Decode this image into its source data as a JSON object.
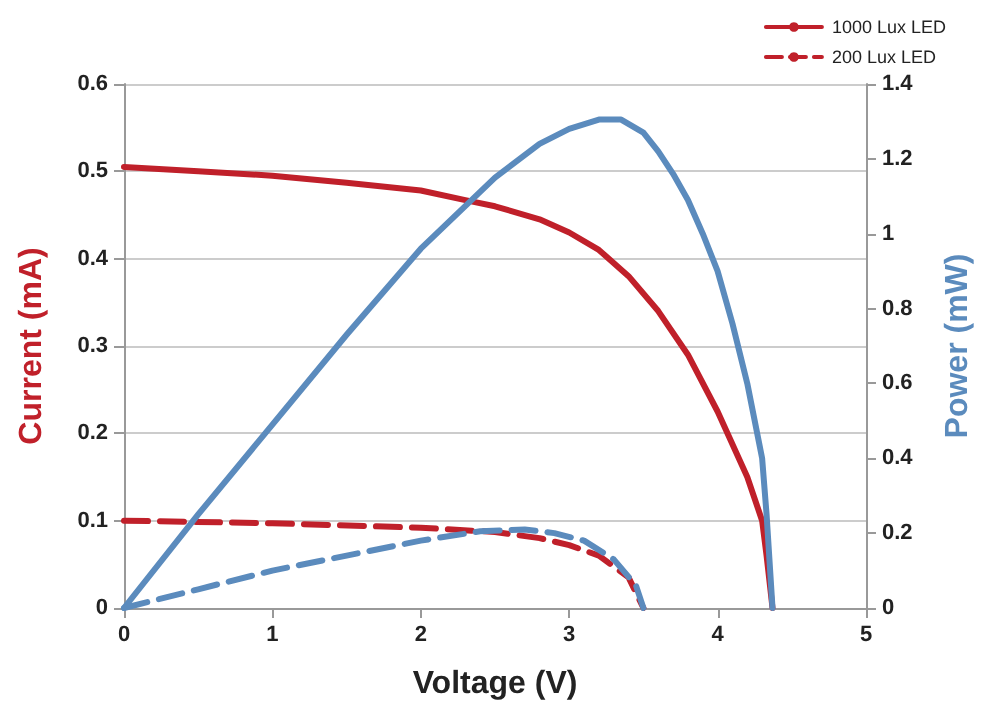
{
  "chart_data": {
    "type": "line",
    "xlabel": "Voltage (V)",
    "ylabel": "Current (mA)",
    "y2label": "Power (mW)",
    "xlim": [
      0,
      5
    ],
    "xticks": [
      0,
      1,
      2,
      3,
      4,
      5
    ],
    "ylim": [
      0,
      0.6
    ],
    "yticks": [
      0,
      0.1,
      0.2,
      0.3,
      0.4,
      0.5,
      0.6
    ],
    "y2lim": [
      0,
      1.4
    ],
    "y2ticks": [
      0,
      0.2,
      0.4,
      0.6,
      0.8,
      1,
      1.2,
      1.4
    ],
    "grid": "y",
    "legend": "top right",
    "marker": "none",
    "series": [
      {
        "name": "1000 Lux LED",
        "color": "#c0202a",
        "line_style": "solid",
        "x": [
          0,
          0.5,
          1,
          1.5,
          2,
          2.3,
          2.5,
          2.8,
          3,
          3.2,
          3.4,
          3.6,
          3.8,
          4,
          4.2,
          4.3,
          4.33,
          4.37
        ],
        "values": [
          0.505,
          0.5,
          0.495,
          0.487,
          0.478,
          0.467,
          0.46,
          0.445,
          0.43,
          0.41,
          0.38,
          0.34,
          0.29,
          0.225,
          0.15,
          0.1,
          0.06,
          0
        ]
      },
      {
        "name": "200 Lux LED",
        "color": "#c0202a",
        "line_style": "dashed",
        "x": [
          0,
          1,
          2,
          2.5,
          2.8,
          3,
          3.2,
          3.4,
          3.5
        ],
        "values": [
          0.1,
          0.097,
          0.092,
          0.087,
          0.08,
          0.072,
          0.06,
          0.035,
          0
        ]
      },
      {
        "color": "#5b8bbd",
        "line_style": "solid",
        "axis": "y2",
        "x": [
          0,
          0.5,
          1,
          1.5,
          2,
          2.5,
          2.8,
          3,
          3.2,
          3.35,
          3.5,
          3.6,
          3.7,
          3.8,
          3.9,
          4,
          4.1,
          4.2,
          4.3,
          4.33,
          4.37
        ],
        "values": [
          0,
          0.25,
          0.49,
          0.73,
          0.96,
          1.15,
          1.24,
          1.28,
          1.305,
          1.305,
          1.27,
          1.22,
          1.16,
          1.09,
          1,
          0.9,
          0.76,
          0.6,
          0.4,
          0.25,
          0
        ]
      },
      {
        "color": "#5b8bbd",
        "line_style": "dashed",
        "axis": "y2",
        "x": [
          0,
          0.5,
          1,
          1.5,
          2,
          2.4,
          2.7,
          2.9,
          3.1,
          3.3,
          3.45,
          3.5
        ],
        "values": [
          0,
          0.05,
          0.1,
          0.14,
          0.18,
          0.205,
          0.21,
          0.2,
          0.18,
          0.13,
          0.06,
          0
        ]
      }
    ]
  }
}
